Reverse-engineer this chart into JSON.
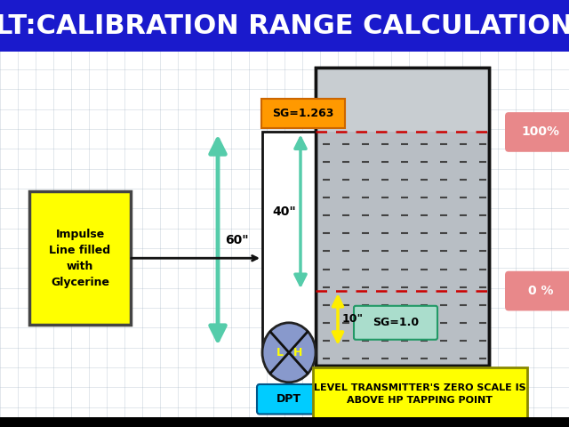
{
  "title": "LT:CALIBRATION RANGE CALCULATION",
  "title_bg": "#1a1acc",
  "title_color": "#ffffff",
  "bg_color": "#ffffff",
  "outer_bg": "#aabbcc",
  "tank_fill": "#b8bec4",
  "tank_top_fill": "#c8cdd1",
  "tank_edge": "#111111",
  "impulse_box_label": "Impulse\nLine filled\nwith\nGlycerine",
  "impulse_box_color": "#ffff00",
  "impulse_box_edge": "#333333",
  "sg_wet_label": "SG=1.263",
  "sg_wet_bg": "#ff9900",
  "sg_tank_label": "SG=1.0",
  "sg_tank_bg": "#aaddcc",
  "sg_tank_edge": "#229966",
  "dim_60": "60\"",
  "dim_40": "40\"",
  "dim_10": "10\"",
  "pct_100": "100%",
  "pct_0": "0 %",
  "pct_color": "#e8888a",
  "dpt_label": "DPT",
  "dpt_bg": "#00ccff",
  "dpt_circle": "#8899cc",
  "bottom_label": "LEVEL TRANSMITTER'S ZERO SCALE IS\nABOVE HP TAPPING POINT",
  "bottom_label_bg": "#ffff00",
  "bottom_label_edge": "#888800",
  "arrow_green": "#55ccaa",
  "arrow_yellow": "#ffee00",
  "grid_color": "#99aabb",
  "dot_color": "#444444",
  "red_dash": "#cc0000",
  "pipe_color": "#111111",
  "pipe_fill": "#ffffff"
}
